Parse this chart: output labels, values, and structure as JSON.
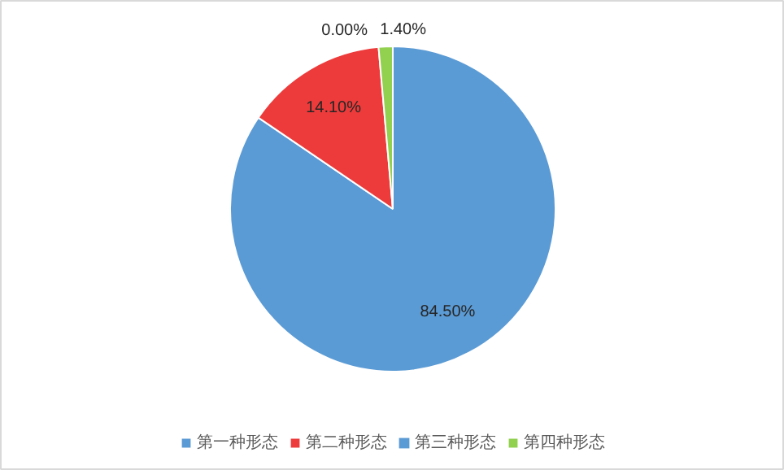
{
  "chart_data": {
    "type": "pie",
    "categories": [
      "第一种形态",
      "第二种形态",
      "第三种形态",
      "第四种形态"
    ],
    "values": [
      84.5,
      14.1,
      0.0,
      1.4
    ],
    "colors": [
      "#5b9bd5",
      "#ed3b3b",
      "#5b9bd5",
      "#92d050"
    ],
    "value_labels": [
      "84.50%",
      "14.10%",
      "0.00%",
      "1.40%"
    ],
    "legend": "bottom"
  }
}
